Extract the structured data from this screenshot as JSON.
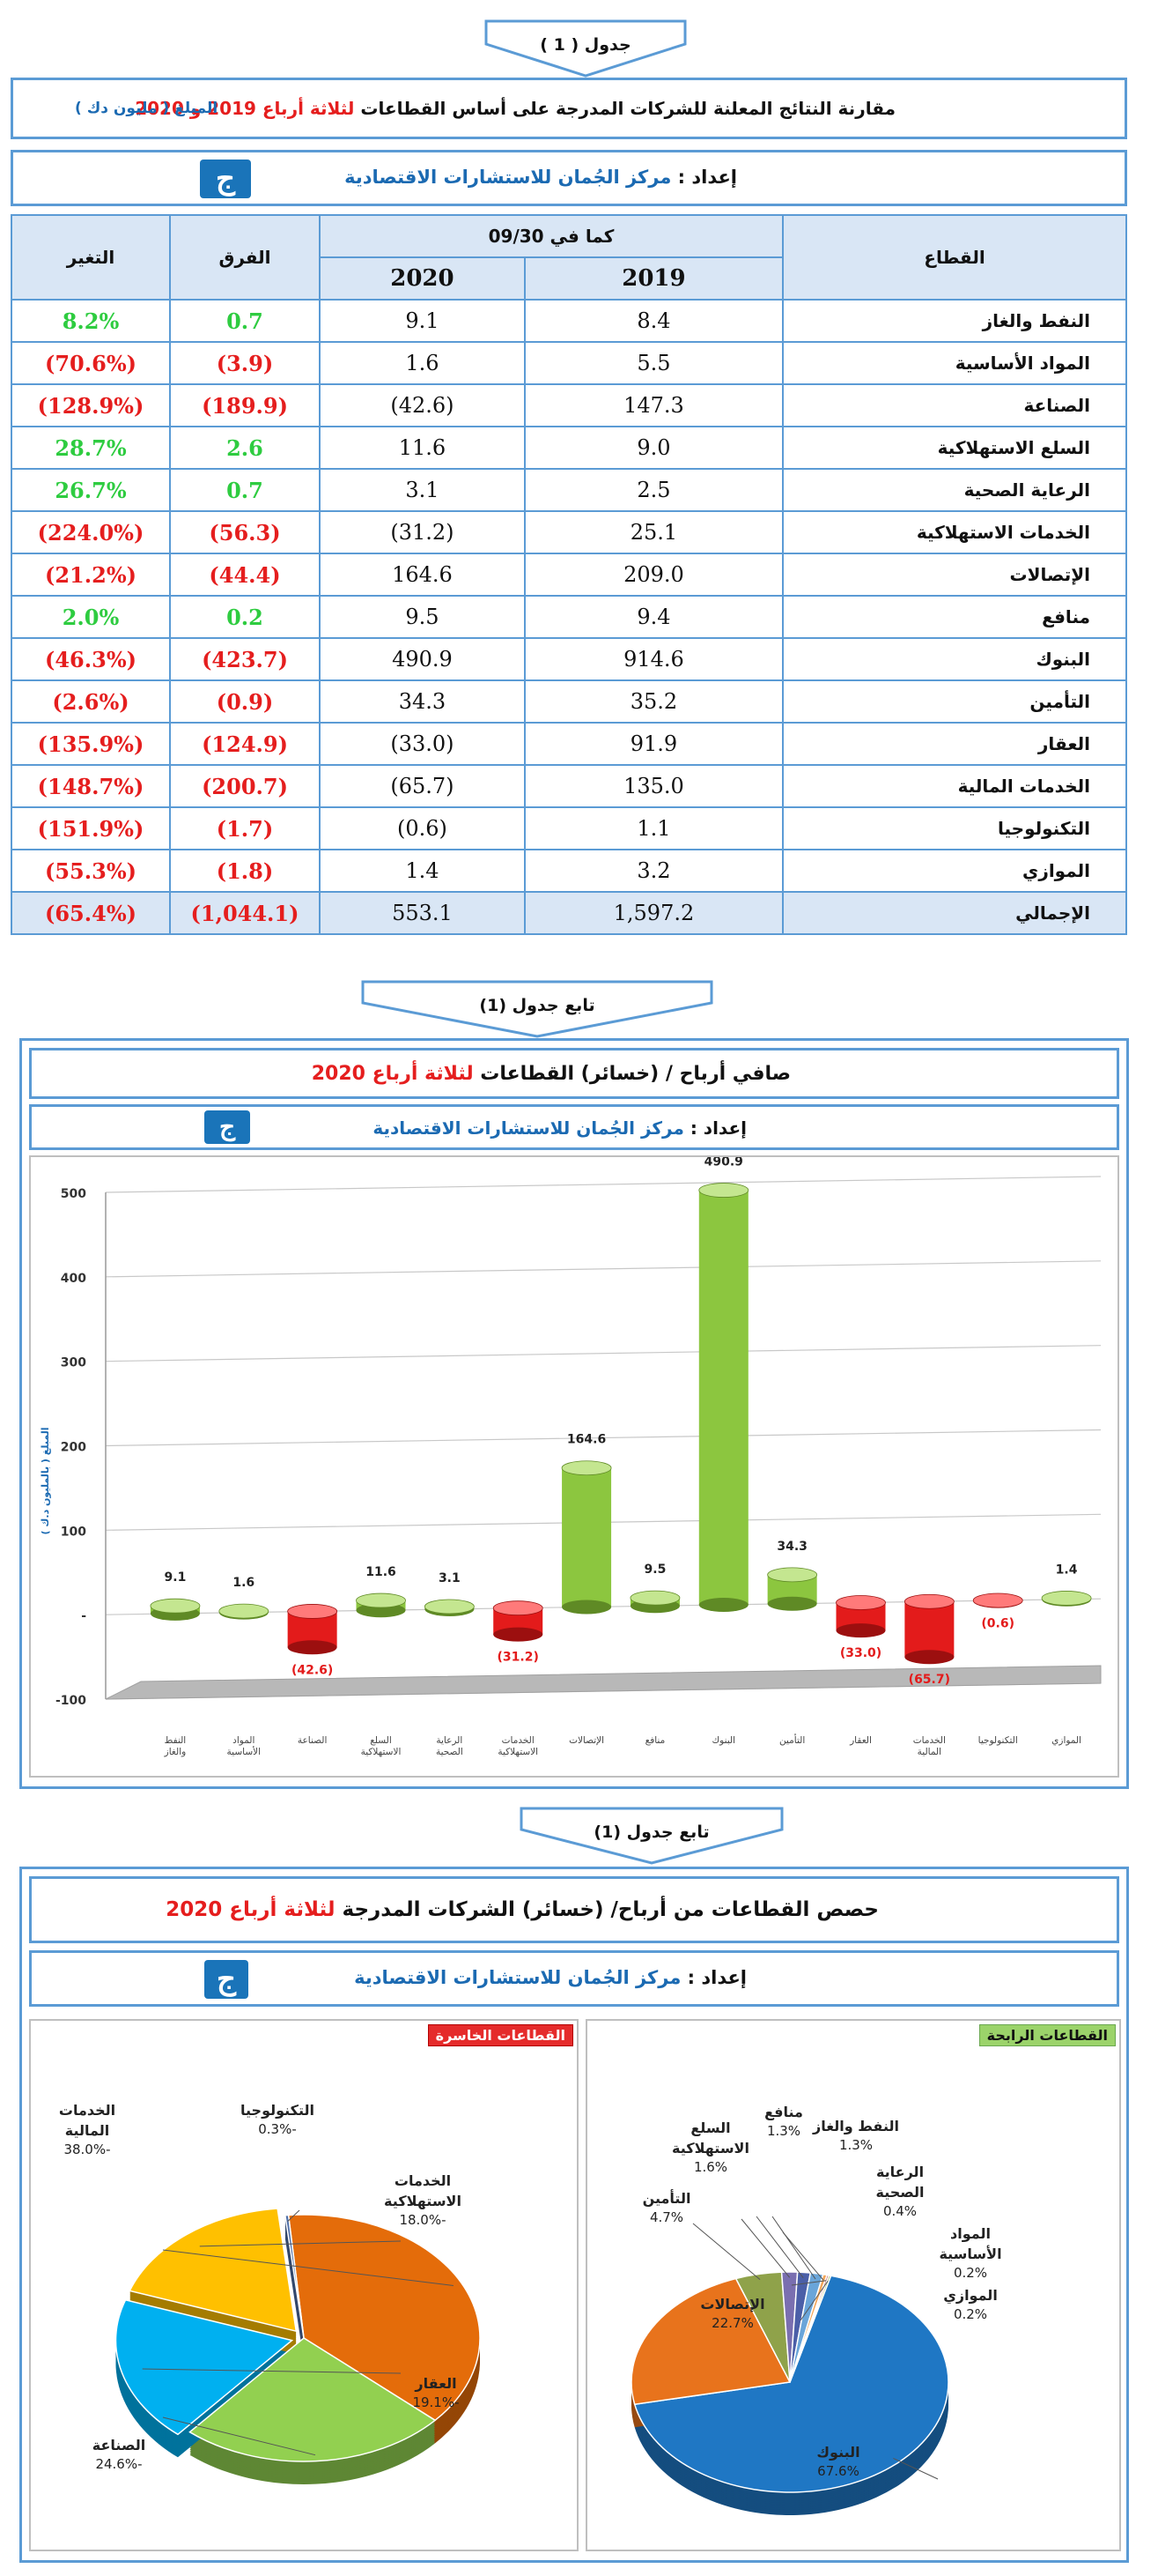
{
  "table1": {
    "tag": "جدول ( 1 )",
    "title_prefix": "مقارنة النتائج المعلنة للشركات المدرجة على أساس القطاعات ",
    "title_highlight": "لثلاثة أرباع 2019 و 2020",
    "amount_note": "المبلغ ( مليون دك )",
    "prepared_label": "إعداد : ",
    "prepared_by": "مركز الجُمان للاستشارات الاقتصادية",
    "logo_glyph": "ج",
    "headers": {
      "sector": "القطاع",
      "as_of": "كما في 09/30",
      "y2019": "2019",
      "y2020": "2020",
      "diff": "الفرق",
      "change": "التغير"
    },
    "rows": [
      {
        "sector": "النفط والغاز",
        "v2019": "8.4",
        "v2020": "9.1",
        "diff": "0.7",
        "change": "8.2%",
        "sign": "pos"
      },
      {
        "sector": "المواد الأساسية",
        "v2019": "5.5",
        "v2020": "1.6",
        "diff": "(3.9)",
        "change": "(70.6%)",
        "sign": "neg"
      },
      {
        "sector": "الصناعة",
        "v2019": "147.3",
        "v2020": "(42.6)",
        "diff": "(189.9)",
        "change": "(128.9%)",
        "sign": "neg"
      },
      {
        "sector": "السلع الاستهلاكية",
        "v2019": "9.0",
        "v2020": "11.6",
        "diff": "2.6",
        "change": "28.7%",
        "sign": "pos"
      },
      {
        "sector": "الرعاية الصحية",
        "v2019": "2.5",
        "v2020": "3.1",
        "diff": "0.7",
        "change": "26.7%",
        "sign": "pos"
      },
      {
        "sector": "الخدمات الاستهلاكية",
        "v2019": "25.1",
        "v2020": "(31.2)",
        "diff": "(56.3)",
        "change": "(224.0%)",
        "sign": "neg"
      },
      {
        "sector": "الإتصالات",
        "v2019": "209.0",
        "v2020": "164.6",
        "diff": "(44.4)",
        "change": "(21.2%)",
        "sign": "neg"
      },
      {
        "sector": "منافع",
        "v2019": "9.4",
        "v2020": "9.5",
        "diff": "0.2",
        "change": "2.0%",
        "sign": "pos"
      },
      {
        "sector": "البنوك",
        "v2019": "914.6",
        "v2020": "490.9",
        "diff": "(423.7)",
        "change": "(46.3%)",
        "sign": "neg"
      },
      {
        "sector": "التأمين",
        "v2019": "35.2",
        "v2020": "34.3",
        "diff": "(0.9)",
        "change": "(2.6%)",
        "sign": "neg"
      },
      {
        "sector": "العقار",
        "v2019": "91.9",
        "v2020": "(33.0)",
        "diff": "(124.9)",
        "change": "(135.9%)",
        "sign": "neg"
      },
      {
        "sector": "الخدمات المالية",
        "v2019": "135.0",
        "v2020": "(65.7)",
        "diff": "(200.7)",
        "change": "(148.7%)",
        "sign": "neg"
      },
      {
        "sector": "التكنولوجيا",
        "v2019": "1.1",
        "v2020": "(0.6)",
        "diff": "(1.7)",
        "change": "(151.9%)",
        "sign": "neg"
      },
      {
        "sector": "الموازي",
        "v2019": "3.2",
        "v2020": "1.4",
        "diff": "(1.8)",
        "change": "(55.3%)",
        "sign": "neg"
      }
    ],
    "total": {
      "sector": "الإجمالي",
      "v2019": "1,597.2",
      "v2020": "553.1",
      "diff": "(1,044.1)",
      "change": "(65.4%)"
    }
  },
  "section2": {
    "tag": "تابع جدول (1)",
    "title_prefix": "صافي أرباح / (خسائر) القطاعات ",
    "title_highlight": "لثلاثة أرباع 2020",
    "prepared_label": "إعداد : ",
    "prepared_by": "مركز الجُمان للاستشارات الاقتصادية"
  },
  "section3": {
    "tag": "تابع جدول (1)",
    "title_prefix": "حصص القطاعات من أرباح/ (خسائر) الشركات المدرجة ",
    "title_highlight": "لثلاثة أرباع 2020",
    "prepared_label": "إعداد : ",
    "prepared_by": "مركز الجُمان للاستشارات الاقتصادية",
    "profit_legend": "القطاعات الرابحة",
    "loss_legend": "القطاعات الخاسرة"
  },
  "colors": {
    "positive_bar": "#8cc63f",
    "negative_bar": "#e31b1b",
    "frame_blue": "#5b9bd5",
    "header_fill": "#d9e6f5",
    "banks": "#1f77c4",
    "telecom": "#e8731c",
    "insurance": "#8fa24a",
    "financial": "#e46c0a",
    "industry": "#92d050",
    "realestate": "#00b0f0",
    "consumer_services": "#ffc000"
  },
  "chart_data": [
    {
      "type": "bar",
      "title": "صافي أرباح / (خسائر) القطاعات لثلاثة أرباع 2020",
      "ylabel": "المبلغ ( بالمليون د.ك )",
      "ylim": [
        -100,
        500
      ],
      "yticks": [
        -100,
        0,
        100,
        200,
        300,
        400,
        500
      ],
      "ytick_labels": [
        "-100",
        "-",
        "100",
        "200",
        "300",
        "400",
        "500"
      ],
      "grid": true,
      "categories": [
        "النفط والغاز",
        "المواد الأساسية",
        "الصناعة",
        "السلع الاستهلاكية",
        "الرعاية الصحية",
        "الخدمات الاستهلاكية",
        "الإتصالات",
        "منافع",
        "البنوك",
        "التأمين",
        "العقار",
        "الخدمات المالية",
        "التكنولوجيا",
        "الموازي"
      ],
      "values": [
        9.1,
        1.6,
        -42.6,
        11.6,
        3.1,
        -31.2,
        164.6,
        9.5,
        490.9,
        34.3,
        -33.0,
        -65.7,
        -0.6,
        1.4
      ],
      "value_labels": [
        "9.1",
        "1.6",
        "(42.6)",
        "11.6",
        "3.1",
        "(31.2)",
        "164.6",
        "9.5",
        "490.9",
        "34.3",
        "(33.0)",
        "(65.7)",
        "(0.6)",
        "1.4"
      ]
    },
    {
      "type": "pie",
      "title": "القطاعات الرابحة",
      "categories": [
        "البنوك",
        "الإتصالات",
        "التأمين",
        "السلع الاستهلاكية",
        "منافع",
        "النفط والغاز",
        "الرعاية الصحية",
        "المواد الأساسية",
        "الموازي"
      ],
      "values": [
        67.6,
        22.7,
        4.7,
        1.6,
        1.3,
        1.3,
        0.4,
        0.2,
        0.2
      ],
      "value_labels": [
        "67.6%",
        "22.7%",
        "4.7%",
        "1.6%",
        "1.3%",
        "1.3%",
        "0.4%",
        "0.2%",
        "0.2%"
      ]
    },
    {
      "type": "pie",
      "title": "القطاعات الخاسرة",
      "categories": [
        "الخدمات المالية",
        "الصناعة",
        "العقار",
        "الخدمات الاستهلاكية",
        "التكنولوجيا"
      ],
      "values": [
        -38.0,
        -24.6,
        -19.1,
        -18.0,
        -0.3
      ],
      "value_labels": [
        "-38.0%",
        "-24.6%",
        "-19.1%",
        "-18.0%",
        "-0.3%"
      ]
    }
  ]
}
